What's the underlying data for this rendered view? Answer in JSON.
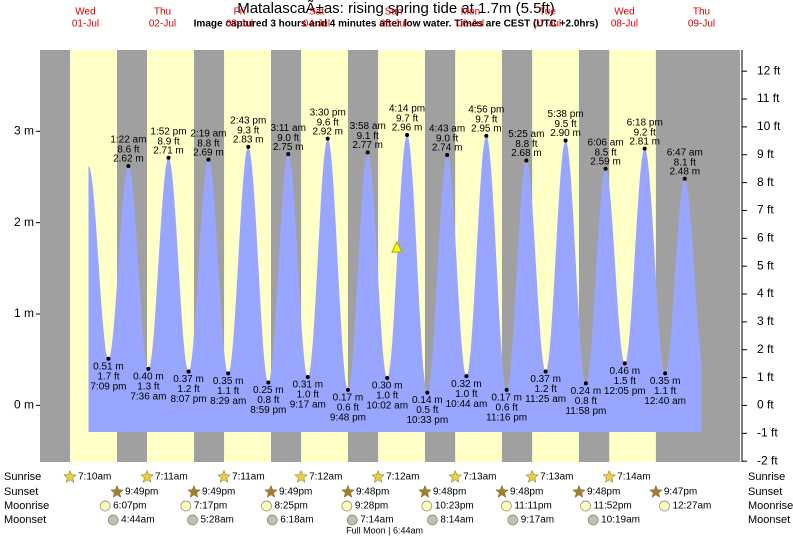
{
  "chart_data": {
    "type": "tide",
    "title": "MatalascaÃ±as: rising  spring tide at 1.7m (5.5ft)",
    "subtitle": "Image captured 3 hours and 4 minutes after low water. Times are CEST (UTC +2.0hrs)",
    "ylim": [
      -0.62,
      3.89
    ],
    "yticks": [
      {
        "value": 0,
        "label": "0 m"
      },
      {
        "value": 1,
        "label": "1 m"
      },
      {
        "value": 2,
        "label": "2 m"
      },
      {
        "value": 3,
        "label": "3 m"
      }
    ],
    "y2lim": [
      -2.03,
      12.76
    ],
    "y2ticks": [
      {
        "value": -2,
        "label": "-2 ft"
      },
      {
        "value": -1,
        "label": "-1 ft"
      },
      {
        "value": 0,
        "label": "0 ft"
      },
      {
        "value": 1,
        "label": "1 ft"
      },
      {
        "value": 2,
        "label": "2 ft"
      },
      {
        "value": 3,
        "label": "3 ft"
      },
      {
        "value": 4,
        "label": "4 ft"
      },
      {
        "value": 5,
        "label": "5 ft"
      },
      {
        "value": 6,
        "label": "6 ft"
      },
      {
        "value": 7,
        "label": "7 ft"
      },
      {
        "value": 8,
        "label": "8 ft"
      },
      {
        "value": 9,
        "label": "9 ft"
      },
      {
        "value": 10,
        "label": "10 ft"
      },
      {
        "value": 11,
        "label": "11 ft"
      },
      {
        "value": 12,
        "label": "12 ft"
      }
    ],
    "row_labels": [
      "Sunrise",
      "Sunset",
      "Moonrise",
      "Moonset"
    ],
    "moon_phase": {
      "day": 4,
      "text": "Full Moon | 6:44am"
    },
    "days": [
      {
        "day": "Wed",
        "date": "01-Jul",
        "sunrise": "7:10am",
        "sunset": "9:49pm",
        "moonrise": "6:07pm",
        "moonset": null,
        "tides": [
          {
            "time": "7:09 pm",
            "height": 0.51,
            "height_label": "0.51 m",
            "feet": 1.7,
            "feet_label": "1.7 ft"
          }
        ]
      },
      {
        "day": "Thu",
        "date": "02-Jul",
        "sunrise": "7:11am",
        "sunset": "9:49pm",
        "moonrise": "7:17pm",
        "moonset": "4:44am",
        "tides": [
          {
            "time": "1:22 am",
            "height": 2.62,
            "height_label": "2.62 m",
            "feet": 8.6,
            "feet_label": "8.6 ft"
          },
          {
            "time": "7:36 am",
            "height": 0.4,
            "height_label": "0.40 m",
            "feet": 1.3,
            "feet_label": "1.3 ft"
          },
          {
            "time": "1:52 pm",
            "height": 2.71,
            "height_label": "2.71 m",
            "feet": 8.9,
            "feet_label": "8.9 ft"
          },
          {
            "time": "8:07 pm",
            "height": 0.37,
            "height_label": "0.37 m",
            "feet": 1.2,
            "feet_label": "1.2 ft"
          }
        ]
      },
      {
        "day": "Fri",
        "date": "03-Jul",
        "sunrise": "7:11am",
        "sunset": "9:49pm",
        "moonrise": "8:25pm",
        "moonset": "5:28am",
        "tides": [
          {
            "time": "2:19 am",
            "height": 2.69,
            "height_label": "2.69 m",
            "feet": 8.8,
            "feet_label": "8.8 ft"
          },
          {
            "time": "8:29 am",
            "height": 0.35,
            "height_label": "0.35 m",
            "feet": 1.1,
            "feet_label": "1.1 ft"
          },
          {
            "time": "2:43 pm",
            "height": 2.83,
            "height_label": "2.83 m",
            "feet": 9.3,
            "feet_label": "9.3 ft"
          },
          {
            "time": "8:59 pm",
            "height": 0.25,
            "height_label": "0.25 m",
            "feet": 0.8,
            "feet_label": "0.8 ft"
          }
        ]
      },
      {
        "day": "Sat",
        "date": "04-Jul",
        "sunrise": "7:12am",
        "sunset": "9:48pm",
        "moonrise": "9:28pm",
        "moonset": "6:18am",
        "tides": [
          {
            "time": "3:11 am",
            "height": 2.75,
            "height_label": "2.75 m",
            "feet": 9.0,
            "feet_label": "9.0 ft"
          },
          {
            "time": "9:17 am",
            "height": 0.31,
            "height_label": "0.31 m",
            "feet": 1.0,
            "feet_label": "1.0 ft"
          },
          {
            "time": "3:30 pm",
            "height": 2.92,
            "height_label": "2.92 m",
            "feet": 9.6,
            "feet_label": "9.6 ft"
          },
          {
            "time": "9:48 pm",
            "height": 0.17,
            "height_label": "0.17 m",
            "feet": 0.6,
            "feet_label": "0.6 ft"
          }
        ]
      },
      {
        "day": "Sun",
        "date": "05-Jul",
        "sunrise": "7:12am",
        "sunset": "9:48pm",
        "moonrise": "10:23pm",
        "moonset": "7:14am",
        "tides": [
          {
            "time": "3:58 am",
            "height": 2.77,
            "height_label": "2.77 m",
            "feet": 9.1,
            "feet_label": "9.1 ft"
          },
          {
            "time": "10:02 am",
            "height": 0.3,
            "height_label": "0.30 m",
            "feet": 1.0,
            "feet_label": "1.0 ft"
          },
          {
            "time": "4:14 pm",
            "height": 2.96,
            "height_label": "2.96 m",
            "feet": 9.7,
            "feet_label": "9.7 ft"
          },
          {
            "time": "10:33 pm",
            "height": 0.14,
            "height_label": "0.14 m",
            "feet": 0.5,
            "feet_label": "0.5 ft"
          }
        ]
      },
      {
        "day": "Mon",
        "date": "06-Jul",
        "sunrise": "7:13am",
        "sunset": "9:48pm",
        "moonrise": "11:11pm",
        "moonset": "8:14am",
        "tides": [
          {
            "time": "4:43 am",
            "height": 2.74,
            "height_label": "2.74 m",
            "feet": 9.0,
            "feet_label": "9.0 ft"
          },
          {
            "time": "10:44 am",
            "height": 0.32,
            "height_label": "0.32 m",
            "feet": 1.0,
            "feet_label": "1.0 ft"
          },
          {
            "time": "4:56 pm",
            "height": 2.95,
            "height_label": "2.95 m",
            "feet": 9.7,
            "feet_label": "9.7 ft"
          },
          {
            "time": "11:16 pm",
            "height": 0.17,
            "height_label": "0.17 m",
            "feet": 0.6,
            "feet_label": "0.6 ft"
          }
        ]
      },
      {
        "day": "Tue",
        "date": "07-Jul",
        "sunrise": "7:13am",
        "sunset": "9:48pm",
        "moonrise": "11:52pm",
        "moonset": "9:17am",
        "tides": [
          {
            "time": "5:25 am",
            "height": 2.68,
            "height_label": "2.68 m",
            "feet": 8.8,
            "feet_label": "8.8 ft"
          },
          {
            "time": "11:25 am",
            "height": 0.37,
            "height_label": "0.37 m",
            "feet": 1.2,
            "feet_label": "1.2 ft"
          },
          {
            "time": "5:38 pm",
            "height": 2.9,
            "height_label": "2.90 m",
            "feet": 9.5,
            "feet_label": "9.5 ft"
          },
          {
            "time": "11:58 pm",
            "height": 0.24,
            "height_label": "0.24 m",
            "feet": 0.8,
            "feet_label": "0.8 ft"
          }
        ]
      },
      {
        "day": "Wed",
        "date": "08-Jul",
        "sunrise": "7:14am",
        "sunset": "9:47pm",
        "moonrise": null,
        "moonset": "10:19am",
        "tides": [
          {
            "time": "6:06 am",
            "height": 2.59,
            "height_label": "2.59 m",
            "feet": 8.5,
            "feet_label": "8.5 ft"
          },
          {
            "time": "12:05 pm",
            "height": 0.46,
            "height_label": "0.46 m",
            "feet": 1.5,
            "feet_label": "1.5 ft"
          },
          {
            "time": "6:18 pm",
            "height": 2.81,
            "height_label": "2.81 m",
            "feet": 9.2,
            "feet_label": "9.2 ft"
          }
        ]
      },
      {
        "day": "Thu",
        "date": "09-Jul",
        "sunrise": null,
        "sunset": null,
        "moonrise": "12:27am",
        "moonset": null,
        "tides": [
          {
            "time": "12:40 am",
            "height": 0.35,
            "height_label": "0.35 m",
            "feet": 1.1,
            "feet_label": "1.1 ft"
          },
          {
            "time": "6:47 am",
            "height": 2.48,
            "height_label": "2.48 m",
            "feet": 8.1,
            "feet_label": "8.1 ft"
          }
        ]
      }
    ]
  }
}
